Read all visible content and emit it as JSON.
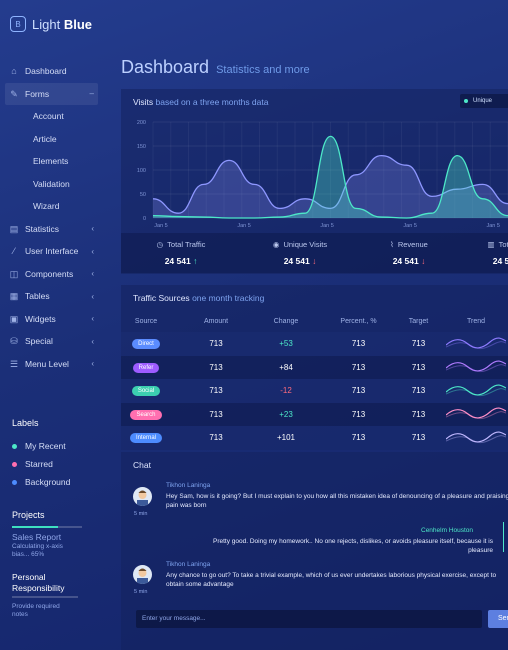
{
  "brand": {
    "light": "Light",
    "bold": "Blue",
    "logo_letter": "B"
  },
  "nav": {
    "dashboard": "Dashboard",
    "forms": "Forms",
    "forms_collapse": "–",
    "sub": [
      "Account",
      "Article",
      "Elements",
      "Validation",
      "Wizard"
    ],
    "statistics": "Statistics",
    "user_interface": "User Interface",
    "components": "Components",
    "tables": "Tables",
    "widgets": "Widgets",
    "special": "Special",
    "menu_level": "Menu Level",
    "chevron": "‹"
  },
  "labels": {
    "heading": "Labels",
    "items": [
      {
        "text": "My Recent",
        "color": "#4de8c8"
      },
      {
        "text": "Starred",
        "color": "#ff6fb0"
      },
      {
        "text": "Background",
        "color": "#4d8cff"
      }
    ]
  },
  "projects": {
    "heading": "Projects",
    "item1": "Sales Report",
    "item1_sub": "Calculating x-axis bias... 65%",
    "item1_progress": 0.65,
    "item2": "Personal Responsibility",
    "item2_sub": "Provide required notes"
  },
  "page": {
    "title": "Dashboard",
    "subtitle": "Statistics and more"
  },
  "visits": {
    "title": "Visits",
    "title_sub": "based on a three months data",
    "legend": "Unique",
    "y_ticks": [
      "200",
      "150",
      "100",
      "50",
      "0"
    ],
    "x_ticks": [
      "Jan 5",
      "Jan 5",
      "Jan 5",
      "Jan 5",
      "Jan 5"
    ]
  },
  "chart_data": {
    "type": "area",
    "x": [
      0,
      1,
      2,
      3,
      4,
      5,
      6,
      7,
      8,
      9,
      10,
      11,
      12,
      13,
      14
    ],
    "series": [
      {
        "name": "Unique",
        "color": "#4de8c8",
        "values": [
          5,
          3,
          2,
          0,
          0,
          2,
          10,
          170,
          20,
          2,
          0,
          10,
          130,
          40,
          5
        ]
      },
      {
        "values": [
          40,
          10,
          70,
          120,
          70,
          20,
          40,
          20,
          90,
          130,
          110,
          45,
          60,
          70,
          30
        ],
        "color": "#8e97ff"
      }
    ],
    "ylim": [
      0,
      200
    ],
    "x_tick_labels": [
      "Jan 5",
      "Jan 5",
      "Jan 5",
      "Jan 5",
      "Jan 5"
    ]
  },
  "stats": [
    {
      "icon": "clock-icon",
      "label": "Total Traffic",
      "value": "24 541",
      "dir": "up",
      "arrow": "↑"
    },
    {
      "icon": "eye-icon",
      "label": "Unique Visits",
      "value": "24 541",
      "dir": "down",
      "arrow": "↓"
    },
    {
      "icon": "trend-icon",
      "label": "Revenue",
      "value": "24 541",
      "dir": "down",
      "arrow": "↓"
    },
    {
      "icon": "chart-icon",
      "label": "Total",
      "value": "24 5",
      "dir": "up",
      "arrow": ""
    }
  ],
  "traffic": {
    "title": "Traffic Sources",
    "title_sub": "one month tracking",
    "columns": [
      "Source",
      "Amount",
      "Change",
      "Percent., %",
      "Target",
      "Trend"
    ],
    "rows": [
      {
        "source": "Direct",
        "color": "#5b8cff",
        "amount": "713",
        "change": "+53",
        "change_class": "up",
        "percent": "713",
        "target": "713",
        "trend_color": "#8e7bff"
      },
      {
        "source": "Refer",
        "color": "#9d5cff",
        "amount": "713",
        "change": "+84",
        "change_class": "plain",
        "percent": "713",
        "target": "713",
        "trend_color": "#b07bff"
      },
      {
        "source": "Social",
        "color": "#3ccfb0",
        "amount": "713",
        "change": "-12",
        "change_class": "down",
        "percent": "713",
        "target": "713",
        "trend_color": "#4de8c8"
      },
      {
        "source": "Search",
        "color": "#ff6fb0",
        "amount": "713",
        "change": "+23",
        "change_class": "up",
        "percent": "713",
        "target": "713",
        "trend_color": "#ff8fc8"
      },
      {
        "source": "Internal",
        "color": "#4d8cff",
        "amount": "713",
        "change": "+101",
        "change_class": "plain",
        "percent": "713",
        "target": "713",
        "trend_color": "#c0b8ff"
      }
    ]
  },
  "chat": {
    "title": "Chat",
    "messages": [
      {
        "name": "Tikhon Laninga",
        "text": "Hey Sam, how is it going? But I must explain to you how all this mistaken idea of denouncing of a pleasure and praising pain was born",
        "time": "5 min"
      },
      {
        "name": "Cenhelm Houston",
        "text": "Pretty good. Doing my homework.. No one rejects, dislikes, or avoids pleasure itself, because it is pleasure"
      },
      {
        "name": "Tikhon Laninga",
        "text": "Any chance to go out? To take a trivial example, which of us ever undertakes laborious physical exercise, except to obtain some advantage",
        "time": "5 min"
      }
    ],
    "input_placeholder": "Enter your message...",
    "send": "Send"
  }
}
